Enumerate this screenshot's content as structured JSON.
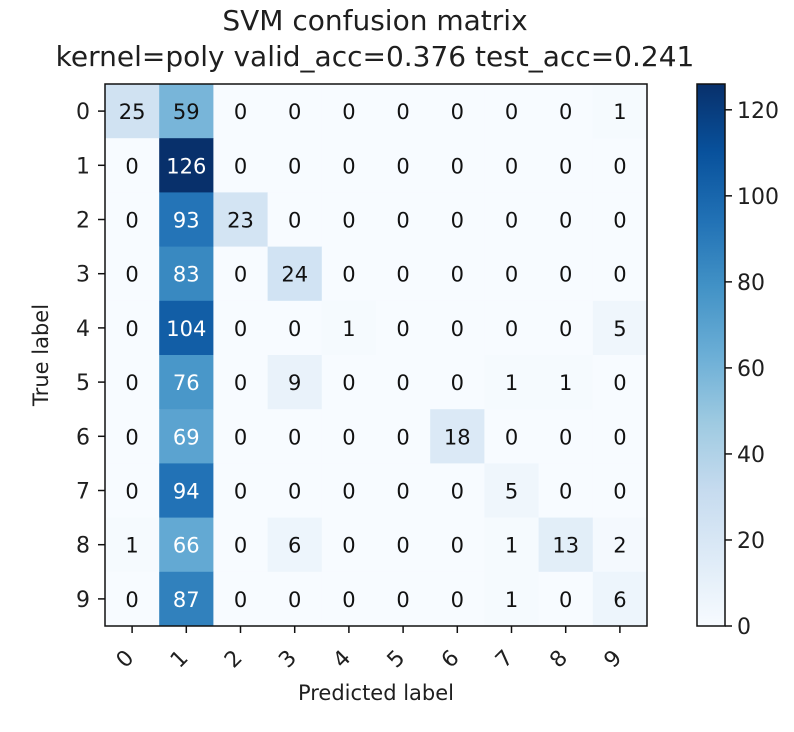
{
  "chart_data": {
    "type": "heatmap",
    "title_line1": "SVM confusion matrix",
    "title_line2": "kernel=poly  valid_acc=0.376  test_acc=0.241",
    "xlabel": "Predicted label",
    "ylabel": "True label",
    "x_categories": [
      "0",
      "1",
      "2",
      "3",
      "4",
      "5",
      "6",
      "7",
      "8",
      "9"
    ],
    "y_categories": [
      "0",
      "1",
      "2",
      "3",
      "4",
      "5",
      "6",
      "7",
      "8",
      "9"
    ],
    "values": [
      [
        25,
        59,
        0,
        0,
        0,
        0,
        0,
        0,
        0,
        1
      ],
      [
        0,
        126,
        0,
        0,
        0,
        0,
        0,
        0,
        0,
        0
      ],
      [
        0,
        93,
        23,
        0,
        0,
        0,
        0,
        0,
        0,
        0
      ],
      [
        0,
        83,
        0,
        24,
        0,
        0,
        0,
        0,
        0,
        0
      ],
      [
        0,
        104,
        0,
        0,
        1,
        0,
        0,
        0,
        0,
        5
      ],
      [
        0,
        76,
        0,
        9,
        0,
        0,
        0,
        1,
        1,
        0
      ],
      [
        0,
        69,
        0,
        0,
        0,
        0,
        18,
        0,
        0,
        0
      ],
      [
        0,
        94,
        0,
        0,
        0,
        0,
        0,
        5,
        0,
        0
      ],
      [
        1,
        66,
        0,
        6,
        0,
        0,
        0,
        1,
        13,
        2
      ],
      [
        0,
        87,
        0,
        0,
        0,
        0,
        0,
        1,
        0,
        6
      ]
    ],
    "colorbar": {
      "min": 0,
      "max": 126,
      "ticks": [
        0,
        20,
        40,
        60,
        80,
        100,
        120
      ]
    },
    "colormap": "Blues",
    "colors": {
      "light": "#f7fbff",
      "dark": "#08306b",
      "text_dark": "#111111",
      "text_light": "#ffffff"
    }
  }
}
